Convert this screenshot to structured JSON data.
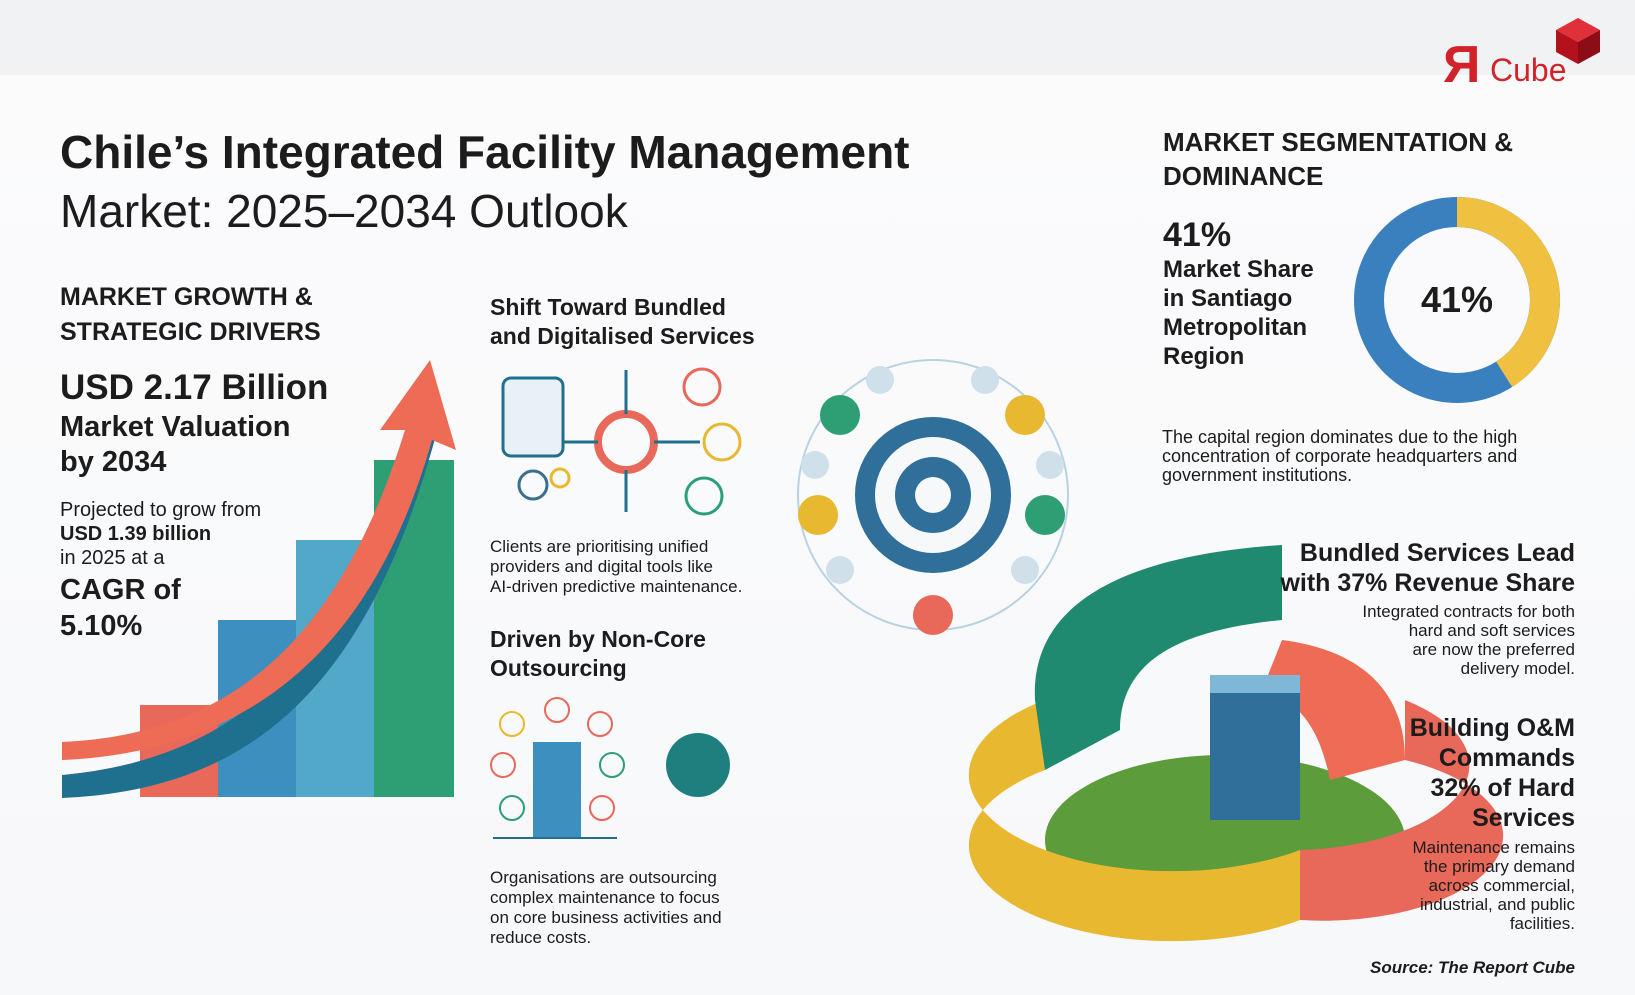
{
  "logo": {
    "mark": "Я",
    "text": "Cube"
  },
  "title": {
    "line1": "Chile’s Integrated Facility Management",
    "line2": "Market: 2025–2034 Outlook"
  },
  "growth": {
    "heading": [
      "MARKET GROWTH &",
      "STRATEGIC DRIVERS"
    ],
    "valuation": [
      "USD 2.17 Billion",
      "Market Valuation",
      "by 2034"
    ],
    "projection": [
      "Projected to grow from",
      "USD 1.39 billion",
      "in 2025 at a",
      "CAGR of",
      "5.10%"
    ]
  },
  "bundled": {
    "heading": [
      "Shift Toward Bundled",
      "and Digitalised Services"
    ],
    "text": [
      "Clients are prioritising unified",
      "providers and digital tools like",
      "AI-driven predictive maintenance."
    ]
  },
  "outsourcing": {
    "heading": [
      "Driven by Non-Core",
      "Outsourcing"
    ],
    "text": [
      "Organisations are outsourcing",
      "complex maintenance to focus",
      "on core business activities and",
      "reduce costs."
    ]
  },
  "segmentation": {
    "heading": [
      "MARKET SEGMENTATION &",
      "DOMINANCE"
    ],
    "share": {
      "value": 41,
      "label": "41%"
    },
    "caption": [
      "Market Share",
      "in Santiago",
      "Metropolitan",
      "Region"
    ],
    "colors": {
      "share": "#f0c040",
      "rest": "#3a80bf"
    },
    "text": [
      "The capital region dominates due to the high",
      "concentration of corporate headquarters and",
      "government institutions."
    ]
  },
  "bundled_lead": {
    "heading": [
      "Bundled Services Lead",
      "with 37% Revenue Share"
    ],
    "text": [
      "Integrated contracts for both",
      "hard and soft services",
      "are now the preferred",
      "delivery model."
    ]
  },
  "building_om": {
    "heading": [
      "Building O&M",
      "Commands",
      "32% of Hard",
      "Services"
    ],
    "text": [
      "Maintenance remains",
      "the primary demand",
      "across commercial,",
      "industrial, and public",
      "facilities."
    ]
  },
  "source": "Source: The Report Cube"
}
